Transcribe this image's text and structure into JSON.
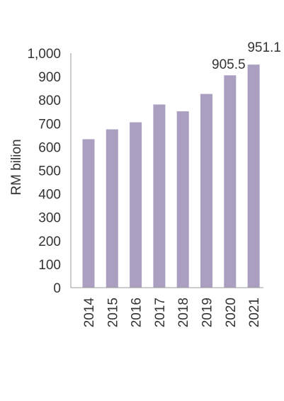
{
  "chart_data": {
    "type": "bar",
    "title": "",
    "xlabel": "",
    "ylabel": "RM bilion",
    "categories": [
      "2014",
      "2015",
      "2016",
      "2017",
      "2018",
      "2019",
      "2020",
      "2021"
    ],
    "values": [
      633,
      675,
      705,
      781,
      752,
      826,
      905.5,
      951.1
    ],
    "data_labels": [
      null,
      null,
      null,
      null,
      null,
      null,
      "905.5",
      "951.1"
    ],
    "ylim": [
      0,
      1000
    ],
    "yticks": [
      0,
      100,
      200,
      300,
      400,
      500,
      600,
      700,
      800,
      900,
      1000
    ],
    "ytick_labels": [
      "0",
      "100",
      "200",
      "300",
      "400",
      "500",
      "600",
      "700",
      "800",
      "900",
      "1,000"
    ],
    "grid": false,
    "legend": "none",
    "bar_color": "#ab9fc1",
    "axis_color": "#999999",
    "text_color": "#333333"
  }
}
